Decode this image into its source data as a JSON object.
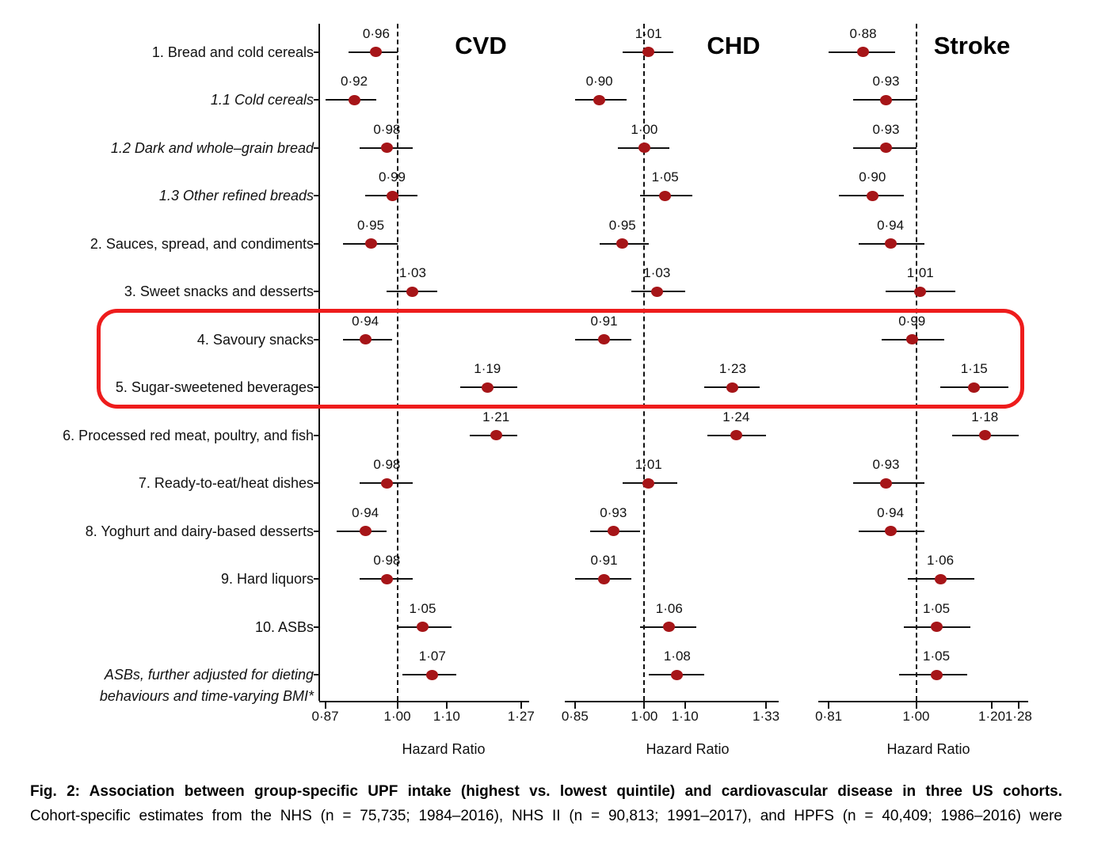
{
  "figure": {
    "caption_line1": "Fig. 2: Association between group-specific UPF intake (highest vs. lowest quintile) and cardiovascular disease in three US cohorts.",
    "caption_line2": "Cohort-specific estimates from the NHS (n = 75,735; 1984–2016), NHS II (n = 90,813; 1991–2017), and HPFS (n = 40,409; 1986–2016) were"
  },
  "chart_data": {
    "type": "scatter",
    "subtype": "forest-plot",
    "xlabel": "Hazard Ratio",
    "scale": "log",
    "reference_value": 1.0,
    "marker_color": "#a61518",
    "highlight_color": "#ee1c1c",
    "categories": [
      {
        "label": "1. Bread and cold cereals",
        "italic": false
      },
      {
        "label": "1.1 Cold cereals",
        "italic": true
      },
      {
        "label": "1.2 Dark and whole–grain bread",
        "italic": true
      },
      {
        "label": "1.3 Other refined breads",
        "italic": true
      },
      {
        "label": "2. Sauces, spread, and condiments",
        "italic": false
      },
      {
        "label": "3. Sweet snacks and desserts",
        "italic": false
      },
      {
        "label": "4. Savoury snacks",
        "italic": false
      },
      {
        "label": "5. Sugar-sweetened beverages",
        "italic": false
      },
      {
        "label": "6. Processed red meat, poultry, and fish",
        "italic": false
      },
      {
        "label": "7. Ready-to-eat/heat dishes",
        "italic": false
      },
      {
        "label": "8. Yoghurt and dairy-based desserts",
        "italic": false
      },
      {
        "label": "9. Hard liquors",
        "italic": false
      },
      {
        "label": "10. ASBs",
        "italic": false
      },
      {
        "label_lines": [
          "ASBs, further adjusted for dieting",
          "behaviours and time-varying BMI*"
        ],
        "italic": true
      }
    ],
    "highlight": {
      "rows": [
        "4. Savoury snacks",
        "5. Sugar-sweetened beverages"
      ],
      "color": "#ee1c1c"
    },
    "panels": [
      {
        "title": "CVD",
        "ticks": [
          0.87,
          1.0,
          1.1,
          1.27
        ],
        "xlim": [
          0.86,
          1.29
        ],
        "values": [
          {
            "est": 0.96,
            "lo": 0.91,
            "hi": 1.0
          },
          {
            "est": 0.92,
            "lo": 0.87,
            "hi": 0.96
          },
          {
            "est": 0.98,
            "lo": 0.93,
            "hi": 1.03
          },
          {
            "est": 0.99,
            "lo": 0.94,
            "hi": 1.04
          },
          {
            "est": 0.95,
            "lo": 0.9,
            "hi": 1.0
          },
          {
            "est": 1.03,
            "lo": 0.98,
            "hi": 1.08
          },
          {
            "est": 0.94,
            "lo": 0.9,
            "hi": 0.99
          },
          {
            "est": 1.19,
            "lo": 1.13,
            "hi": 1.26
          },
          {
            "est": 1.21,
            "lo": 1.15,
            "hi": 1.26
          },
          {
            "est": 0.98,
            "lo": 0.93,
            "hi": 1.03
          },
          {
            "est": 0.94,
            "lo": 0.89,
            "hi": 0.98
          },
          {
            "est": 0.98,
            "lo": 0.93,
            "hi": 1.03
          },
          {
            "est": 1.05,
            "lo": 1.0,
            "hi": 1.11
          },
          {
            "est": 1.07,
            "lo": 1.01,
            "hi": 1.12
          }
        ]
      },
      {
        "title": "CHD",
        "ticks": [
          0.85,
          1.0,
          1.1,
          1.33
        ],
        "xlim": [
          0.83,
          1.37
        ],
        "values": [
          {
            "est": 1.01,
            "lo": 0.95,
            "hi": 1.07
          },
          {
            "est": 0.9,
            "lo": 0.85,
            "hi": 0.96
          },
          {
            "est": 1.0,
            "lo": 0.94,
            "hi": 1.06
          },
          {
            "est": 1.05,
            "lo": 0.99,
            "hi": 1.12
          },
          {
            "est": 0.95,
            "lo": 0.9,
            "hi": 1.01
          },
          {
            "est": 1.03,
            "lo": 0.97,
            "hi": 1.1
          },
          {
            "est": 0.91,
            "lo": 0.85,
            "hi": 0.97
          },
          {
            "est": 1.23,
            "lo": 1.15,
            "hi": 1.31
          },
          {
            "est": 1.24,
            "lo": 1.16,
            "hi": 1.33
          },
          {
            "est": 1.01,
            "lo": 0.95,
            "hi": 1.08
          },
          {
            "est": 0.93,
            "lo": 0.88,
            "hi": 0.99
          },
          {
            "est": 0.91,
            "lo": 0.85,
            "hi": 0.97
          },
          {
            "est": 1.06,
            "lo": 0.99,
            "hi": 1.13
          },
          {
            "est": 1.08,
            "lo": 1.01,
            "hi": 1.15
          }
        ]
      },
      {
        "title": "Stroke",
        "ticks": [
          0.81,
          1.0,
          1.2,
          1.28
        ],
        "xlim": [
          0.79,
          1.31
        ],
        "values": [
          {
            "est": 0.88,
            "lo": 0.81,
            "hi": 0.95
          },
          {
            "est": 0.93,
            "lo": 0.86,
            "hi": 1.0
          },
          {
            "est": 0.93,
            "lo": 0.86,
            "hi": 1.0
          },
          {
            "est": 0.9,
            "lo": 0.83,
            "hi": 0.97
          },
          {
            "est": 0.94,
            "lo": 0.87,
            "hi": 1.02
          },
          {
            "est": 1.01,
            "lo": 0.93,
            "hi": 1.1
          },
          {
            "est": 0.99,
            "lo": 0.92,
            "hi": 1.07
          },
          {
            "est": 1.15,
            "lo": 1.06,
            "hi": 1.25
          },
          {
            "est": 1.18,
            "lo": 1.09,
            "hi": 1.28
          },
          {
            "est": 0.93,
            "lo": 0.86,
            "hi": 1.02
          },
          {
            "est": 0.94,
            "lo": 0.87,
            "hi": 1.02
          },
          {
            "est": 1.06,
            "lo": 0.98,
            "hi": 1.15
          },
          {
            "est": 1.05,
            "lo": 0.97,
            "hi": 1.14
          },
          {
            "est": 1.05,
            "lo": 0.96,
            "hi": 1.13
          }
        ]
      }
    ]
  }
}
